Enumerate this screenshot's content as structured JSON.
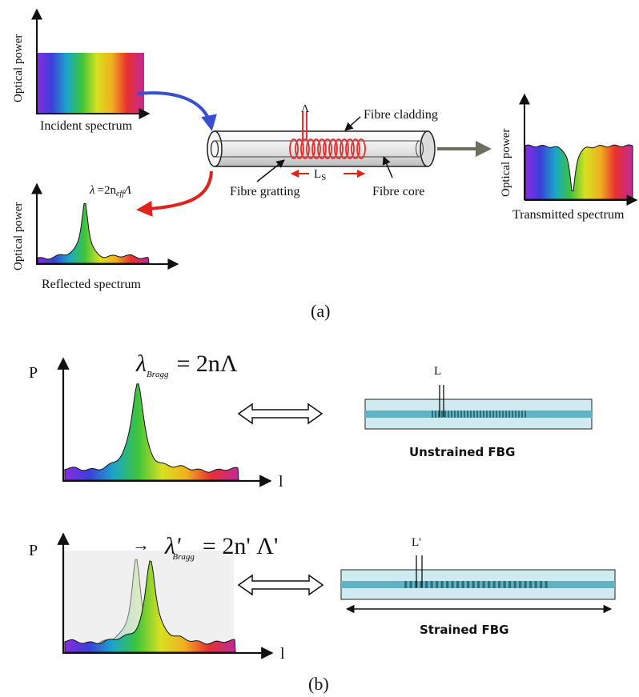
{
  "panel_a": {
    "caption": "(a)",
    "incident": {
      "axis_label": "Optical power",
      "caption": "Incident spectrum"
    },
    "reflected": {
      "axis_label": "Optical power",
      "caption": "Reflected spectrum",
      "formula_lhs": "λ",
      "formula_eq": "=2n",
      "formula_sub": "eff",
      "formula_rhs": "Λ"
    },
    "transmitted": {
      "axis_label": "Optical power",
      "caption": "Transmitted spectrum"
    },
    "fibre": {
      "period_label": "Λ",
      "cladding_label": "Fibre cladding",
      "grating_label": "Fibre gratting",
      "core_label": "Fibre core",
      "length_label": "L",
      "length_sub": "S"
    }
  },
  "panel_b": {
    "caption": "(b)",
    "unstrained": {
      "y_label": "P",
      "x_label": "l",
      "formula_lambda": "λ",
      "formula_sub": "Bragg",
      "formula_rhs": "= 2nΛ",
      "period_label": "L",
      "fbg_label": "Unstrained FBG"
    },
    "strained": {
      "y_label": "P",
      "x_label": "l",
      "shift_arrow": "→",
      "formula_lambda": "λ'",
      "formula_sub": "Bragg",
      "formula_rhs": "= 2n' Λ'",
      "period_label": "L'",
      "fbg_label": "Strained FBG"
    }
  },
  "colors": {
    "blue_arrow": "#3a4fd0",
    "red_arrow": "#e0231c",
    "gray_arrow": "#6e6e60",
    "fbg_body": "#cfeaf0",
    "fbg_core": "#5fb3c2",
    "grating": "#2f6f7c",
    "coil": "#e23030"
  }
}
